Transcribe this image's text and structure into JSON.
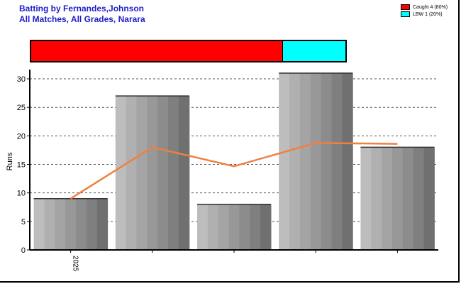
{
  "title_line1": "Batting by Fernandes,Johnson",
  "title_line2": "All Matches, All Grades, Narara",
  "legend": [
    {
      "label": "Caught 4 (80%)",
      "color": "#ff0000",
      "fraction": 0.8
    },
    {
      "label": "LBW 1 (20%)",
      "color": "#00ffff",
      "fraction": 0.2
    }
  ],
  "chart_data": {
    "type": "bar",
    "categories": [
      "2025",
      "",
      "",
      "",
      ""
    ],
    "values": [
      9,
      27,
      8,
      31,
      18
    ],
    "line": [
      9,
      18,
      14.67,
      18.75,
      18.6
    ],
    "ylabel": "Runs",
    "ylim": [
      0,
      31
    ],
    "yticks": [
      0,
      5,
      10,
      15,
      20,
      25,
      30
    ],
    "grid": true,
    "bar_color": "#999999",
    "line_color": "#f08040"
  }
}
